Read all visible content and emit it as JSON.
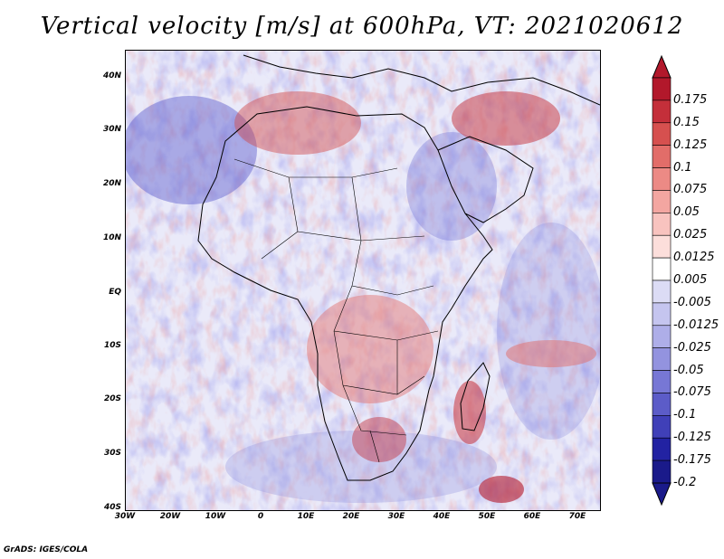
{
  "title": "Vertical velocity [m/s] at 600hPa, VT: 2021020612",
  "credit": "GrADS: IGES/COLA",
  "map": {
    "region": "Africa",
    "lon_labels": [
      "30W",
      "20W",
      "10W",
      "0",
      "10E",
      "20E",
      "30E",
      "40E",
      "50E",
      "60E",
      "70E"
    ],
    "lat_labels": [
      "40N",
      "30N",
      "20N",
      "10N",
      "EQ",
      "10S",
      "20S",
      "30S",
      "40S"
    ]
  },
  "colorbar": {
    "levels": [
      "0.175",
      "0.15",
      "0.125",
      "0.1",
      "0.075",
      "0.05",
      "0.025",
      "0.0125",
      "0.005",
      "-0.005",
      "-0.0125",
      "-0.025",
      "-0.05",
      "-0.075",
      "-0.1",
      "-0.125",
      "-0.175",
      "-0.2"
    ],
    "colors": [
      "#b2182b",
      "#c42f3a",
      "#d6504f",
      "#e26d69",
      "#ec8a85",
      "#f3a6a1",
      "#f8c3bf",
      "#fcdedb",
      "#ffffff",
      "#dcdcf5",
      "#c5c5ef",
      "#aeaee8",
      "#9393df",
      "#7777d5",
      "#5c5cc8",
      "#4040b8",
      "#2222a2",
      "#1a1a8a"
    ]
  }
}
